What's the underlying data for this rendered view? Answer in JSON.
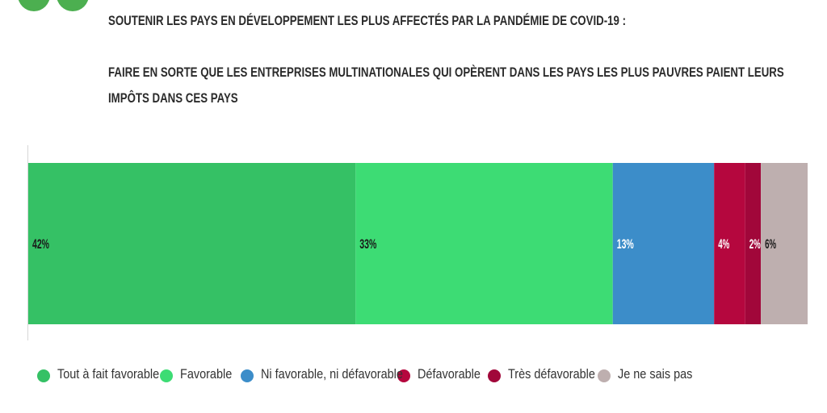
{
  "header": {
    "line1": "SOUTENIR LES PAYS EN DÉVELOPPEMENT LES PLUS AFFECTÉS PAR LA PANDÉMIE DE COVID-19 :",
    "question": "FAIRE EN SORTE QUE LES ENTREPRISES MULTINATIONALES QUI OPÈRENT DANS LES PAYS LES PLUS PAUVRES PAIENT LEURS IMPÔTS DANS CES PAYS"
  },
  "colors": {
    "quote_icon": "#4caf50"
  },
  "chart_data": {
    "type": "bar",
    "orientation": "horizontal-stacked-100",
    "categories": [
      ""
    ],
    "series": [
      {
        "name": "Tout à fait favorable",
        "value": 42,
        "label": "42%",
        "color": "#35c165",
        "label_color": "#1a1a1a"
      },
      {
        "name": "Favorable",
        "value": 33,
        "label": "33%",
        "color": "#3ddc74",
        "label_color": "#1a1a1a"
      },
      {
        "name": "Ni favorable, ni défavorable",
        "value": 13,
        "label": "13%",
        "color": "#3c8dc9",
        "label_color": "#ffffff"
      },
      {
        "name": "Défavorable",
        "value": 4,
        "label": "4%",
        "color": "#b5073e",
        "label_color": "#ffffff"
      },
      {
        "name": "Très défavorable",
        "value": 2,
        "label": "2%",
        "color": "#a1073a",
        "label_color": "#ffffff"
      },
      {
        "name": "Je ne sais pas",
        "value": 6,
        "label": "6%",
        "color": "#beafaf",
        "label_color": "#1a1a1a"
      }
    ],
    "xlim": [
      0,
      100
    ],
    "legend_position": "bottom",
    "grid": false
  }
}
